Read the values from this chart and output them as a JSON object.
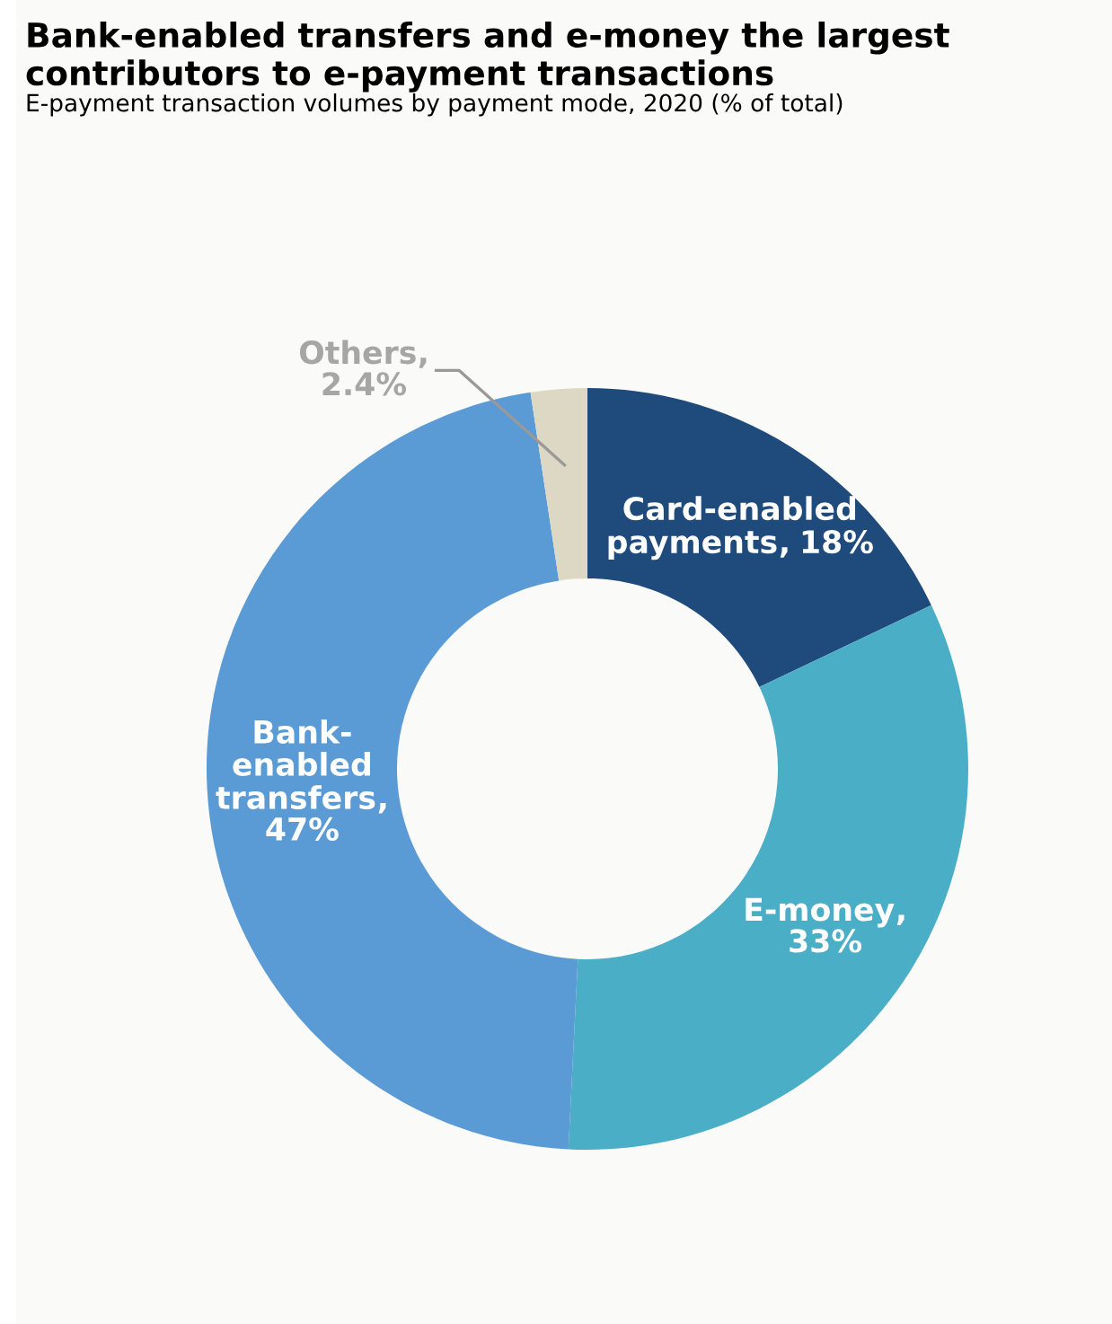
{
  "chart_data": {
    "type": "donut",
    "title": "Bank-enabled transfers and e-money the largest contributors to e-payment transactions",
    "subtitle": "E-payment transaction volumes by payment mode, 2020 (% of total)",
    "categories": [
      "Card-enabled payments",
      "E-money",
      "Bank-enabled transfers",
      "Others"
    ],
    "values": [
      18,
      33,
      47,
      2.4
    ],
    "colors": [
      "#1f4a7c",
      "#4aaec6",
      "#5b9bd5",
      "#ddd8c3"
    ],
    "value_labels": [
      ", 18%",
      ", 33%",
      ", 47%",
      ", 2.4%"
    ],
    "legend": false
  }
}
